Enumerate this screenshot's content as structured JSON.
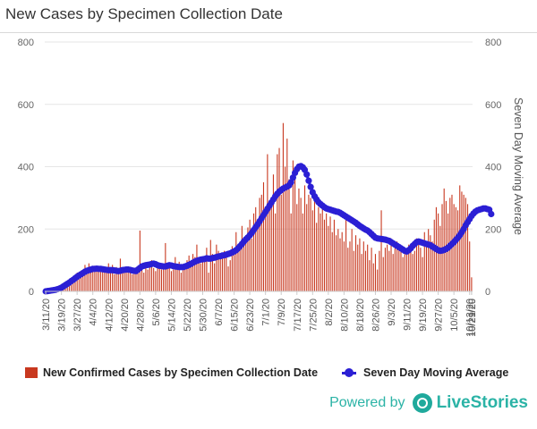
{
  "page": {
    "title": "New Cases by Specimen Collection Date",
    "powered_by": "Powered by",
    "brand": "LiveStories"
  },
  "colors": {
    "bars": "#c8381f",
    "line": "#2b1fd4",
    "grid": "#e6e6e6",
    "brand": "#2bb3a6"
  },
  "chart_data": {
    "type": "bar",
    "title": "New Cases by Specimen Collection Date",
    "ylim": [
      0,
      800
    ],
    "yticks": [
      0,
      200,
      400,
      600,
      800
    ],
    "y2label": "Seven Day Moving Average",
    "x_tick_labels": [
      "3/11/20",
      "3/19/20",
      "3/27/20",
      "4/4/20",
      "4/12/20",
      "4/20/20",
      "4/28/20",
      "5/6/20",
      "5/14/20",
      "5/22/20",
      "5/30/20",
      "6/7/20",
      "6/15/20",
      "6/23/20",
      "7/1/20",
      "7/9/20",
      "7/17/20",
      "7/25/20",
      "8/2/20",
      "8/10/20",
      "8/18/20",
      "8/26/20",
      "9/3/20",
      "9/11/20",
      "9/19/20",
      "9/27/20",
      "10/5/20",
      "10/13/20",
      "10/21/20",
      "10/29/20"
    ],
    "tick_interval_days": 8,
    "series": [
      {
        "name": "New Confirmed Cases by Specimen Collection Date",
        "type": "bar",
        "values": [
          0,
          2,
          4,
          3,
          5,
          6,
          10,
          12,
          18,
          22,
          25,
          30,
          35,
          40,
          42,
          50,
          60,
          55,
          65,
          70,
          85,
          72,
          90,
          80,
          75,
          82,
          78,
          70,
          65,
          80,
          72,
          68,
          90,
          60,
          85,
          55,
          78,
          65,
          105,
          70,
          72,
          68,
          80,
          62,
          55,
          75,
          65,
          70,
          195,
          80,
          60,
          90,
          70,
          85,
          100,
          75,
          65,
          90,
          80,
          70,
          85,
          155,
          75,
          90,
          65,
          70,
          110,
          85,
          95,
          60,
          85,
          70,
          100,
          115,
          85,
          120,
          110,
          150,
          100,
          90,
          95,
          105,
          140,
          60,
          165,
          120,
          90,
          150,
          130,
          105,
          110,
          130,
          125,
          80,
          100,
          145,
          120,
          190,
          130,
          160,
          210,
          150,
          180,
          205,
          230,
          170,
          250,
          270,
          225,
          300,
          310,
          350,
          250,
          440,
          280,
          300,
          375,
          250,
          440,
          460,
          310,
          540,
          400,
          490,
          360,
          250,
          420,
          390,
          280,
          330,
          300,
          250,
          340,
          280,
          310,
          300,
          260,
          320,
          220,
          270,
          250,
          280,
          230,
          250,
          210,
          240,
          190,
          230,
          180,
          200,
          170,
          190,
          160,
          250,
          140,
          160,
          200,
          130,
          180,
          150,
          170,
          120,
          160,
          130,
          150,
          100,
          140,
          90,
          120,
          70,
          130,
          260,
          110,
          140,
          150,
          130,
          170,
          120,
          150,
          160,
          140,
          130,
          110,
          120,
          130,
          150,
          140,
          120,
          130,
          170,
          150,
          140,
          110,
          190,
          150,
          200,
          180,
          160,
          230,
          270,
          250,
          210,
          280,
          330,
          290,
          250,
          300,
          310,
          280,
          270,
          260,
          340,
          320,
          310,
          300,
          280,
          160,
          45
        ]
      },
      {
        "name": "Seven Day Moving Average",
        "type": "line",
        "values": [
          0,
          1,
          2,
          3,
          4,
          5,
          7,
          9,
          12,
          16,
          20,
          24,
          28,
          33,
          37,
          42,
          47,
          51,
          55,
          59,
          63,
          66,
          68,
          70,
          72,
          72,
          73,
          72,
          72,
          71,
          70,
          69,
          68,
          68,
          68,
          67,
          66,
          65,
          66,
          68,
          69,
          70,
          70,
          69,
          67,
          66,
          65,
          70,
          75,
          80,
          82,
          84,
          85,
          86,
          88,
          89,
          87,
          84,
          82,
          81,
          80,
          80,
          82,
          84,
          83,
          81,
          80,
          79,
          78,
          78,
          78,
          80,
          82,
          85,
          88,
          92,
          95,
          98,
          100,
          102,
          103,
          104,
          106,
          105,
          105,
          107,
          108,
          110,
          112,
          113,
          115,
          116,
          118,
          120,
          122,
          125,
          128,
          132,
          138,
          145,
          152,
          160,
          167,
          173,
          180,
          188,
          197,
          206,
          215,
          225,
          235,
          245,
          255,
          265,
          275,
          285,
          295,
          305,
          313,
          320,
          325,
          330,
          333,
          336,
          340,
          350,
          365,
          380,
          392,
          400,
          402,
          398,
          390,
          375,
          355,
          335,
          318,
          305,
          295,
          286,
          280,
          275,
          270,
          266,
          264,
          262,
          260,
          258,
          256,
          255,
          252,
          248,
          244,
          240,
          236,
          232,
          228,
          224,
          220,
          215,
          210,
          206,
          202,
          198,
          195,
          190,
          184,
          178,
          172,
          170,
          169,
          168,
          167,
          166,
          164,
          162,
          158,
          154,
          150,
          146,
          142,
          138,
          134,
          130,
          128,
          132,
          138,
          146,
          152,
          158,
          160,
          158,
          156,
          154,
          152,
          150,
          148,
          144,
          140,
          136,
          132,
          130,
          131,
          133,
          136,
          140,
          146,
          152,
          158,
          165,
          172,
          180,
          190,
          200,
          212,
          222,
          232,
          242,
          250,
          256,
          260,
          262,
          264,
          266,
          266,
          264,
          262,
          248
        ]
      }
    ]
  }
}
